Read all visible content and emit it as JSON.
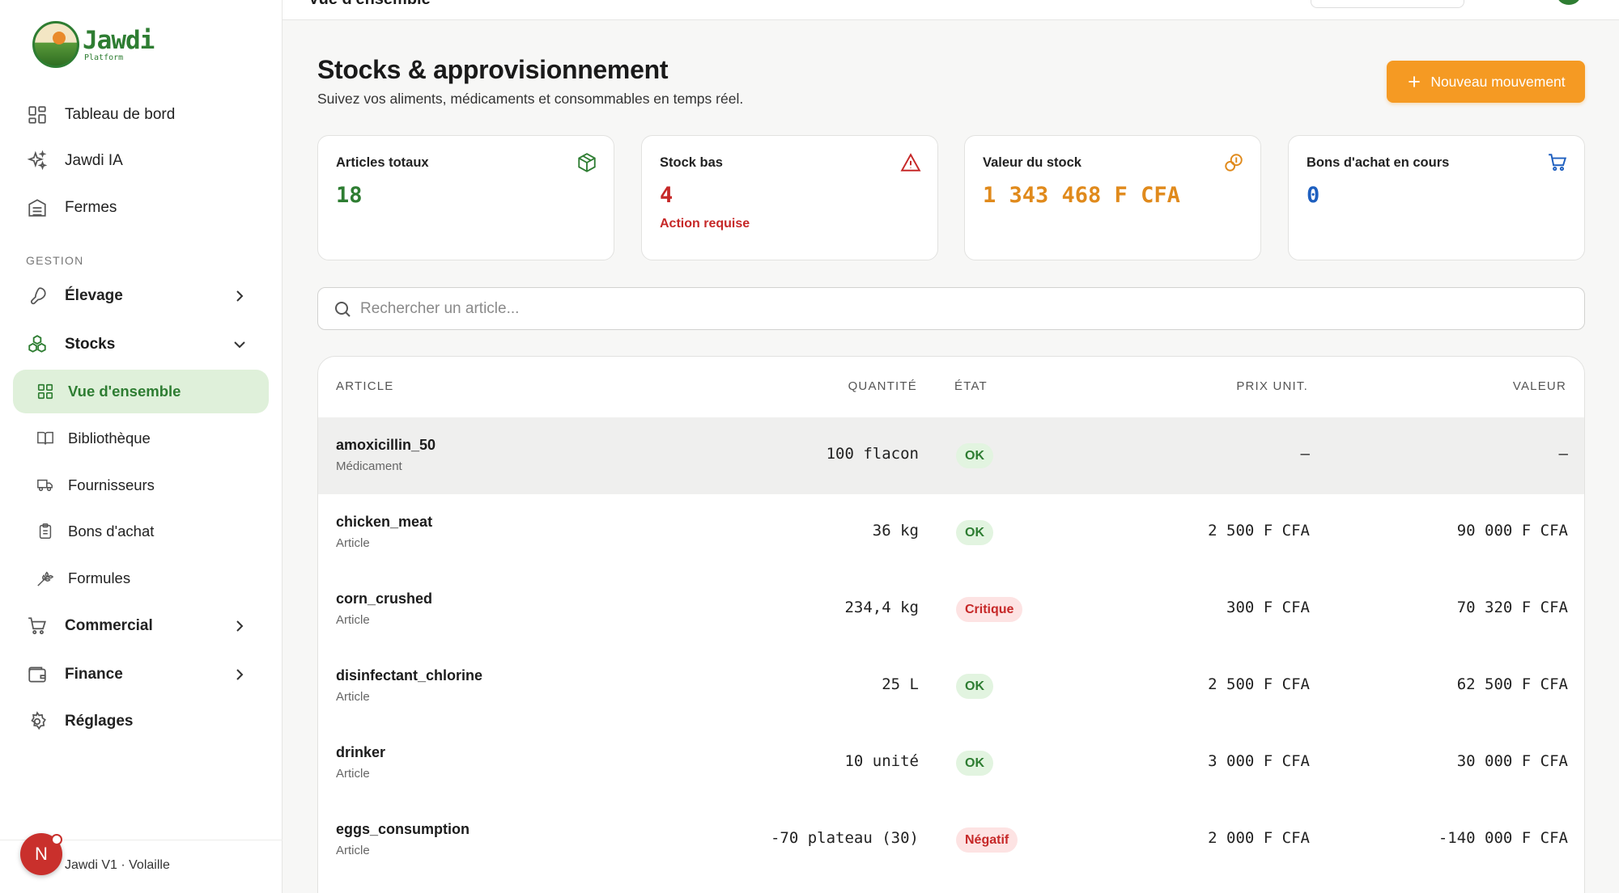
{
  "sidebar": {
    "logo_name": "Jawdi",
    "logo_sub": "Platform",
    "nav": [
      {
        "label": "Tableau de bord",
        "icon": "dashboard-icon"
      },
      {
        "label": "Jawdi IA",
        "icon": "sparkles-icon"
      },
      {
        "label": "Fermes",
        "icon": "building-icon"
      }
    ],
    "section_label": "GESTION",
    "groups": {
      "elevage": "Élevage",
      "stocks": "Stocks",
      "commercial": "Commercial",
      "finance": "Finance",
      "reglages": "Réglages"
    },
    "stocks_sub": [
      {
        "label": "Vue d'ensemble",
        "icon": "grid-icon"
      },
      {
        "label": "Bibliothèque",
        "icon": "book-icon"
      },
      {
        "label": "Fournisseurs",
        "icon": "truck-icon"
      },
      {
        "label": "Bons d'achat",
        "icon": "clipboard-icon"
      },
      {
        "label": "Formules",
        "icon": "wheat-icon"
      }
    ],
    "footer_text": "Jawdi V1 · Volaille",
    "avatar_initial": "N"
  },
  "topbar": {
    "title": "Vue d'ensemble"
  },
  "header": {
    "title": "Stocks & approvisionnement",
    "subtitle": "Suivez vos aliments, médicaments et consommables en temps réel.",
    "new_button": "Nouveau mouvement"
  },
  "cards": [
    {
      "label": "Articles totaux",
      "value": "18",
      "note": "",
      "color": "#2e7d32",
      "icon": "box-icon"
    },
    {
      "label": "Stock bas",
      "value": "4",
      "note": "Action requise",
      "color": "#c62828",
      "icon": "warning-icon"
    },
    {
      "label": "Valeur du stock",
      "value": "1 343 468  F CFA",
      "note": "",
      "color": "#e08a1c",
      "icon": "coins-icon"
    },
    {
      "label": "Bons d'achat en cours",
      "value": "0",
      "note": "",
      "color": "#1e5fbf",
      "icon": "cart-icon"
    }
  ],
  "search": {
    "placeholder": "Rechercher un article..."
  },
  "table": {
    "headers": {
      "article": "ARTICLE",
      "quantity": "QUANTITÉ",
      "state": "ÉTAT",
      "unit_price": "PRIX UNIT.",
      "value": "VALEUR"
    },
    "rows": [
      {
        "name": "amoxicillin_50",
        "category": "Médicament",
        "quantity": "100 flacon",
        "state": "OK",
        "unit_price": "—",
        "value": "—"
      },
      {
        "name": "chicken_meat",
        "category": "Article",
        "quantity": "36 kg",
        "state": "OK",
        "unit_price": "2 500 F CFA",
        "value": "90 000 F CFA"
      },
      {
        "name": "corn_crushed",
        "category": "Article",
        "quantity": "234,4 kg",
        "state": "Critique",
        "unit_price": "300 F CFA",
        "value": "70 320 F CFA"
      },
      {
        "name": "disinfectant_chlorine",
        "category": "Article",
        "quantity": "25 L",
        "state": "OK",
        "unit_price": "2 500 F CFA",
        "value": "62 500 F CFA"
      },
      {
        "name": "drinker",
        "category": "Article",
        "quantity": "10 unité",
        "state": "OK",
        "unit_price": "3 000 F CFA",
        "value": "30 000 F CFA"
      },
      {
        "name": "eggs_consumption",
        "category": "Article",
        "quantity": "-70 plateau (30)",
        "state": "Négatif",
        "unit_price": "2 000 F CFA",
        "value": "-140 000 F CFA"
      }
    ]
  },
  "colors": {
    "accent_green": "#2e7d32",
    "accent_orange": "#f59a23",
    "danger": "#c62828",
    "info_blue": "#1e5fbf"
  }
}
